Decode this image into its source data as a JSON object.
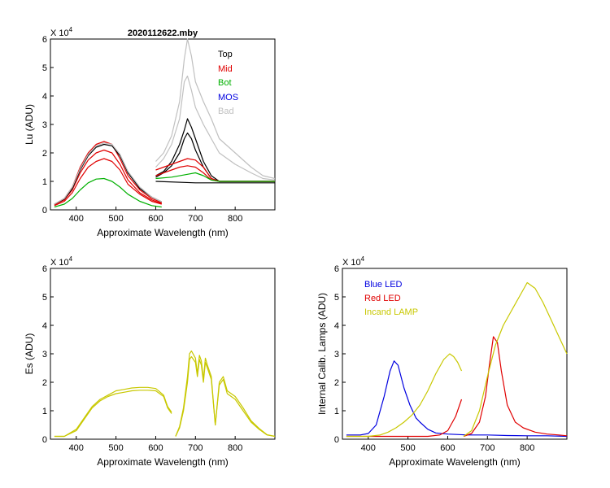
{
  "chart_data": [
    {
      "type": "line",
      "title": "2020112622.mby",
      "xlabel": "Approximate Wavelength (nm)",
      "ylabel": "Lu (ADU)",
      "multiplier": "X 10",
      "multiplier_exp": "4",
      "xlim": [
        335,
        900
      ],
      "ylim": [
        0,
        6
      ],
      "xticks": [
        400,
        500,
        600,
        700,
        800
      ],
      "yticks": [
        0,
        1,
        2,
        3,
        4,
        5,
        6
      ],
      "legend": [
        {
          "label": "Top",
          "color": "#000000"
        },
        {
          "label": "Mid",
          "color": "#e00000"
        },
        {
          "label": "Bot",
          "color": "#00b000"
        },
        {
          "label": "MOS",
          "color": "#0000e0"
        },
        {
          "label": "Bad",
          "color": "#c0c0c0"
        }
      ],
      "series": [
        {
          "name": "Mid",
          "color": "#e00000",
          "x": [
            345,
            370,
            390,
            410,
            430,
            450,
            470,
            490,
            510,
            530,
            560,
            590,
            615
          ],
          "y": [
            0.2,
            0.4,
            0.8,
            1.5,
            2.0,
            2.3,
            2.4,
            2.3,
            1.8,
            1.2,
            0.7,
            0.4,
            0.25
          ]
        },
        {
          "name": "Mid",
          "color": "#e00000",
          "x": [
            345,
            370,
            390,
            410,
            430,
            450,
            470,
            490,
            510,
            530,
            560,
            590,
            615
          ],
          "y": [
            0.18,
            0.35,
            0.7,
            1.3,
            1.75,
            2.0,
            2.1,
            2.0,
            1.6,
            1.05,
            0.6,
            0.35,
            0.22
          ]
        },
        {
          "name": "Mid",
          "color": "#e00000",
          "x": [
            345,
            370,
            390,
            410,
            430,
            450,
            470,
            490,
            510,
            530,
            560,
            590,
            615
          ],
          "y": [
            0.15,
            0.3,
            0.6,
            1.1,
            1.5,
            1.7,
            1.8,
            1.7,
            1.4,
            0.9,
            0.55,
            0.3,
            0.2
          ]
        },
        {
          "name": "Top",
          "color": "#000000",
          "x": [
            345,
            370,
            390,
            410,
            430,
            450,
            470,
            490,
            510,
            530,
            560,
            590,
            615
          ],
          "y": [
            0.2,
            0.38,
            0.75,
            1.4,
            1.9,
            2.2,
            2.3,
            2.25,
            1.9,
            1.3,
            0.75,
            0.45,
            0.28
          ]
        },
        {
          "name": "Bot",
          "color": "#00b000",
          "x": [
            345,
            370,
            390,
            410,
            430,
            450,
            470,
            490,
            510,
            530,
            560,
            590,
            615
          ],
          "y": [
            0.1,
            0.2,
            0.4,
            0.7,
            0.95,
            1.08,
            1.1,
            1.0,
            0.8,
            0.55,
            0.3,
            0.15,
            0.1
          ]
        },
        {
          "name": "Bad",
          "color": "#c0c0c0",
          "x": [
            345,
            370,
            390,
            410,
            430,
            450,
            470,
            490,
            510,
            530,
            560,
            590,
            615
          ],
          "y": [
            0.2,
            0.4,
            0.8,
            1.45,
            1.95,
            2.25,
            2.35,
            2.3,
            1.95,
            1.35,
            0.8,
            0.45,
            0.28
          ]
        },
        {
          "name": "Bad",
          "color": "#c0c0c0",
          "x": [
            600,
            620,
            640,
            660,
            672,
            680,
            690,
            700,
            720,
            740,
            760,
            800,
            840,
            870,
            900
          ],
          "y": [
            1.7,
            2.0,
            2.6,
            3.8,
            5.3,
            6.0,
            5.4,
            4.5,
            3.8,
            3.2,
            2.5,
            2.0,
            1.5,
            1.2,
            1.1
          ]
        },
        {
          "name": "Bad",
          "color": "#c0c0c0",
          "x": [
            600,
            620,
            640,
            660,
            672,
            680,
            690,
            700,
            720,
            740,
            760,
            800,
            840,
            870,
            900
          ],
          "y": [
            1.5,
            1.8,
            2.3,
            3.2,
            4.5,
            4.7,
            4.2,
            3.6,
            3.0,
            2.5,
            2.0,
            1.6,
            1.3,
            1.1,
            1.05
          ]
        },
        {
          "name": "Top",
          "color": "#000000",
          "x": [
            600,
            620,
            640,
            660,
            672,
            680,
            690,
            700,
            720,
            740,
            760,
            800,
            840,
            870,
            900
          ],
          "y": [
            1.2,
            1.35,
            1.7,
            2.3,
            2.8,
            3.2,
            2.9,
            2.5,
            1.7,
            1.2,
            1.0,
            1.0,
            1.0,
            1.0,
            1.0
          ]
        },
        {
          "name": "Top",
          "color": "#000000",
          "x": [
            600,
            620,
            640,
            660,
            672,
            680,
            690,
            700,
            720,
            740,
            760,
            800,
            840,
            870,
            900
          ],
          "y": [
            1.15,
            1.3,
            1.55,
            2.0,
            2.5,
            2.7,
            2.5,
            2.1,
            1.5,
            1.1,
            1.0,
            1.0,
            1.0,
            1.0,
            1.0
          ]
        },
        {
          "name": "Mid",
          "color": "#e00000",
          "x": [
            600,
            620,
            640,
            660,
            680,
            700,
            720,
            740,
            760,
            800,
            840,
            900
          ],
          "y": [
            1.4,
            1.5,
            1.6,
            1.7,
            1.8,
            1.75,
            1.5,
            1.1,
            1.0,
            1.0,
            1.0,
            1.0
          ]
        },
        {
          "name": "Mid",
          "color": "#e00000",
          "x": [
            600,
            620,
            640,
            660,
            680,
            700,
            720,
            740,
            760,
            800,
            840,
            900
          ],
          "y": [
            1.2,
            1.3,
            1.4,
            1.5,
            1.55,
            1.5,
            1.3,
            1.05,
            1.0,
            1.0,
            1.0,
            1.0
          ]
        },
        {
          "name": "Bot",
          "color": "#00b000",
          "x": [
            600,
            640,
            680,
            700,
            720,
            740,
            760,
            800,
            900
          ],
          "y": [
            1.1,
            1.15,
            1.25,
            1.3,
            1.2,
            1.05,
            1.0,
            1.0,
            1.0
          ]
        },
        {
          "name": "Top",
          "color": "#000000",
          "x": [
            600,
            700,
            800,
            900
          ],
          "y": [
            1.0,
            0.95,
            0.95,
            0.95
          ]
        }
      ]
    },
    {
      "type": "line",
      "title": "",
      "xlabel": "Approximate Wavelength (nm)",
      "ylabel": "Es (ADU)",
      "multiplier": "X 10",
      "multiplier_exp": "4",
      "xlim": [
        335,
        900
      ],
      "ylim": [
        0,
        6
      ],
      "xticks": [
        400,
        500,
        600,
        700,
        800
      ],
      "yticks": [
        0,
        1,
        2,
        3,
        4,
        5,
        6
      ],
      "series": [
        {
          "name": "Es",
          "color": "#c8c800",
          "x": [
            345,
            370,
            400,
            420,
            440,
            460,
            480,
            500,
            520,
            540,
            560,
            580,
            600,
            620,
            630,
            640
          ],
          "y": [
            0.1,
            0.1,
            0.3,
            0.7,
            1.1,
            1.35,
            1.5,
            1.6,
            1.65,
            1.7,
            1.72,
            1.72,
            1.7,
            1.5,
            1.1,
            0.9
          ]
        },
        {
          "name": "Es",
          "color": "#c8c800",
          "x": [
            345,
            370,
            400,
            420,
            440,
            460,
            480,
            500,
            520,
            540,
            560,
            580,
            600,
            620,
            630,
            640
          ],
          "y": [
            0.1,
            0.1,
            0.35,
            0.75,
            1.15,
            1.4,
            1.55,
            1.7,
            1.75,
            1.8,
            1.82,
            1.82,
            1.78,
            1.55,
            1.15,
            0.95
          ]
        },
        {
          "name": "Es",
          "color": "#c8c800",
          "x": [
            650,
            660,
            670,
            680,
            685,
            690,
            700,
            705,
            710,
            715,
            720,
            725,
            730,
            740,
            750,
            760,
            770,
            780,
            800,
            820,
            840,
            860,
            880,
            900
          ],
          "y": [
            0.1,
            0.4,
            1.0,
            2.0,
            2.8,
            2.9,
            2.7,
            2.2,
            2.8,
            2.6,
            2.0,
            2.7,
            2.5,
            2.1,
            0.5,
            1.9,
            2.1,
            1.6,
            1.4,
            1.0,
            0.6,
            0.35,
            0.15,
            0.1
          ]
        },
        {
          "name": "Es",
          "color": "#c8c800",
          "x": [
            650,
            660,
            670,
            680,
            685,
            690,
            700,
            705,
            710,
            715,
            720,
            725,
            730,
            740,
            750,
            760,
            770,
            780,
            800,
            820,
            840,
            860,
            880,
            900
          ],
          "y": [
            0.1,
            0.45,
            1.1,
            2.2,
            3.0,
            3.1,
            2.85,
            2.3,
            2.95,
            2.75,
            2.1,
            2.85,
            2.6,
            2.2,
            0.5,
            2.0,
            2.2,
            1.7,
            1.5,
            1.1,
            0.65,
            0.38,
            0.16,
            0.1
          ]
        }
      ]
    },
    {
      "type": "line",
      "title": "",
      "xlabel": "Approximate Wavelength (nm)",
      "ylabel": "Internal Calib. Lamps  (ADU)",
      "multiplier": "X 10",
      "multiplier_exp": "4",
      "xlim": [
        335,
        900
      ],
      "ylim": [
        0,
        6
      ],
      "xticks": [
        400,
        500,
        600,
        700,
        800
      ],
      "yticks": [
        0,
        1,
        2,
        3,
        4,
        5,
        6
      ],
      "legend": [
        {
          "label": "Blue LED",
          "color": "#0000e0"
        },
        {
          "label": "Red LED",
          "color": "#e00000"
        },
        {
          "label": "Incand LAMP",
          "color": "#c8c800"
        }
      ],
      "series": [
        {
          "name": "Blue LED",
          "color": "#0000e0",
          "x": [
            345,
            380,
            400,
            420,
            440,
            455,
            465,
            475,
            490,
            505,
            520,
            530,
            550,
            570,
            600,
            650,
            700,
            750,
            800,
            850,
            900
          ],
          "y": [
            0.15,
            0.15,
            0.2,
            0.5,
            1.5,
            2.4,
            2.75,
            2.6,
            1.8,
            1.2,
            0.75,
            0.6,
            0.35,
            0.22,
            0.18,
            0.15,
            0.15,
            0.13,
            0.12,
            0.12,
            0.1
          ]
        },
        {
          "name": "Red LED",
          "color": "#e00000",
          "x": [
            345,
            400,
            500,
            550,
            580,
            600,
            620,
            635
          ],
          "y": [
            0.1,
            0.1,
            0.1,
            0.1,
            0.15,
            0.3,
            0.8,
            1.4
          ]
        },
        {
          "name": "Red LED",
          "color": "#e00000",
          "x": [
            640,
            660,
            680,
            695,
            705,
            715,
            725,
            735,
            750,
            770,
            790,
            820,
            850,
            880,
            900
          ],
          "y": [
            0.1,
            0.2,
            0.6,
            1.5,
            2.6,
            3.6,
            3.4,
            2.4,
            1.2,
            0.6,
            0.4,
            0.25,
            0.18,
            0.15,
            0.12
          ]
        },
        {
          "name": "Incand LAMP",
          "color": "#c8c800",
          "x": [
            345,
            400,
            430,
            450,
            470,
            490,
            510,
            530,
            550,
            570,
            590,
            605,
            615,
            625,
            635
          ],
          "y": [
            0.1,
            0.1,
            0.15,
            0.25,
            0.4,
            0.6,
            0.85,
            1.2,
            1.7,
            2.3,
            2.8,
            3.0,
            2.9,
            2.7,
            2.4
          ]
        },
        {
          "name": "Incand LAMP",
          "color": "#c8c800",
          "x": [
            640,
            660,
            680,
            700,
            720,
            740,
            760,
            780,
            800,
            820,
            840,
            860,
            880,
            900
          ],
          "y": [
            0.1,
            0.3,
            1.0,
            2.2,
            3.3,
            4.0,
            4.5,
            5.0,
            5.5,
            5.3,
            4.8,
            4.2,
            3.6,
            3.0
          ]
        }
      ]
    }
  ]
}
